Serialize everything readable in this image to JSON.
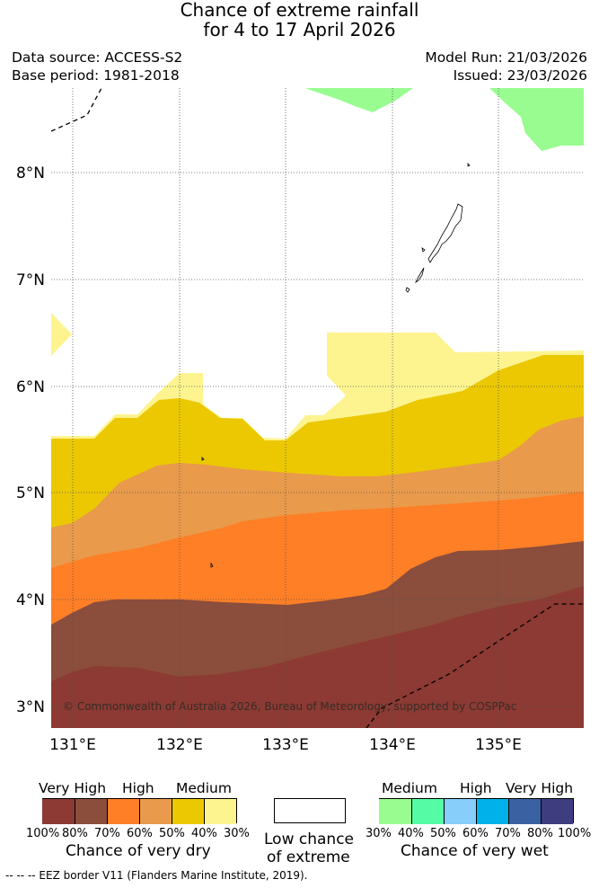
{
  "header": {
    "title_line1": "Chance of extreme rainfall",
    "title_line2": "for 4 to 17 April 2026",
    "data_source": "Data source: ACCESS-S2",
    "base_period": "Base period: 1981-2018",
    "model_run": "Model Run: 21/03/2026",
    "issued": "Issued: 23/03/2026"
  },
  "map": {
    "lat_labels": [
      "8°N",
      "7°N",
      "6°N",
      "5°N",
      "4°N",
      "3°N"
    ],
    "lon_labels": [
      "131°E",
      "132°E",
      "133°E",
      "134°E",
      "135°E"
    ],
    "copyright": "© Commonwealth of Australia 2026, Bureau of Meteorology, supported by COSPPac"
  },
  "legend": {
    "dry": {
      "categories": [
        "Very High",
        "High",
        "Medium"
      ],
      "percent_labels": [
        "100%",
        "80%",
        "70%",
        "60%",
        "50%",
        "40%",
        "30%"
      ],
      "colors": [
        "#8c3a33",
        "#8b4d3c",
        "#fe7f26",
        "#e99a4b",
        "#ebc802",
        "#fdf490"
      ],
      "caption": "Chance of very dry"
    },
    "neutral": {
      "caption_line1": "Low chance",
      "caption_line2": "of extreme",
      "color": "#ffffff"
    },
    "wet": {
      "categories": [
        "Medium",
        "High",
        "Very High"
      ],
      "percent_labels": [
        "30%",
        "40%",
        "50%",
        "60%",
        "70%",
        "80%",
        "100%"
      ],
      "colors": [
        "#99fc91",
        "#55fca5",
        "#87cefa",
        "#00b1ea",
        "#3a62a3",
        "#3e3d80"
      ],
      "caption": "Chance of very wet"
    }
  },
  "footer": {
    "eez_note": "-- -- -- EEZ border V11 (Flanders Marine Institute, 2019)."
  }
}
